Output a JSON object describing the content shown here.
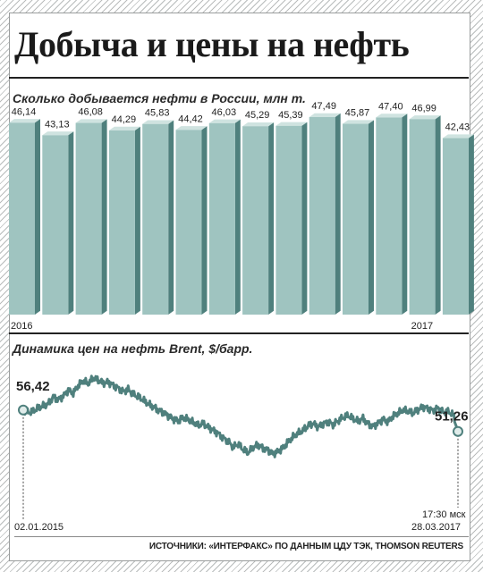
{
  "title": "Добыча и цены на нефть",
  "source": "ИСТОЧНИКИ: «ИНТЕРФАКС» ПО ДАННЫМ ЦДУ ТЭК, THOMSON REUTERS",
  "chart_data": [
    {
      "type": "bar",
      "title": "Сколько добывается нефти в России, млн т.",
      "categories": [
        "2016-01",
        "2016-02",
        "2016-03",
        "2016-04",
        "2016-05",
        "2016-06",
        "2016-07",
        "2016-08",
        "2016-09",
        "2016-10",
        "2016-11",
        "2016-12",
        "2017-01",
        "2017-02"
      ],
      "category_labels": [
        "2016",
        "",
        "",
        "",
        "",
        "",
        "",
        "",
        "",
        "",
        "",
        "",
        "2017",
        ""
      ],
      "values": [
        46.14,
        43.13,
        46.08,
        44.29,
        45.83,
        44.42,
        46.03,
        45.29,
        45.39,
        47.49,
        45.87,
        47.4,
        46.99,
        42.43
      ],
      "value_labels": [
        "46,14",
        "43,13",
        "46,08",
        "44,29",
        "45,83",
        "44,42",
        "46,03",
        "45,29",
        "45,39",
        "47,49",
        "45,87",
        "47,40",
        "46,99",
        "42,43"
      ],
      "colors": {
        "face": "#9fc4c0",
        "side": "#4f807d",
        "top": "#cfe3e0"
      }
    },
    {
      "type": "line",
      "title": "Динамика цен на нефть Brent, $/барр.",
      "start": {
        "date": "02.01.2015",
        "value": 56.42,
        "value_label": "56,42"
      },
      "end": {
        "date": "28.03.2017",
        "time": "17:30 мск",
        "value": 51.26,
        "value_label": "51,26"
      },
      "color": "#4f807d",
      "marker_fill": "#e0ecea",
      "values": [
        56.42,
        55.8,
        56.1,
        56.9,
        57.4,
        57.9,
        59.6,
        58.9,
        59.8,
        61.2,
        60.5,
        62.3,
        63.4,
        62.8,
        64.1,
        63.6,
        62.9,
        63.2,
        62.4,
        61.7,
        60.9,
        61.4,
        60.2,
        59.6,
        58.8,
        57.9,
        57.2,
        56.4,
        55.9,
        55.1,
        54.3,
        53.8,
        54.6,
        54.1,
        53.4,
        52.7,
        53.2,
        52.3,
        51.6,
        50.8,
        49.7,
        48.9,
        47.5,
        48.2,
        46.9,
        46.1,
        47.4,
        48.0,
        47.2,
        46.8,
        45.9,
        46.5,
        47.3,
        48.7,
        49.9,
        50.8,
        51.5,
        52.6,
        53.2,
        52.4,
        53.1,
        53.6,
        52.9,
        53.8,
        54.6,
        55.1,
        54.3,
        53.7,
        54.4,
        53.1,
        52.5,
        53.3,
        54.2,
        53.6,
        54.9,
        55.6,
        56.4,
        56.1,
        55.7,
        56.5,
        57.2,
        56.8,
        56.3,
        56.9,
        55.9,
        56.0,
        55.4,
        51.26
      ],
      "ylim": [
        40,
        68
      ]
    }
  ]
}
